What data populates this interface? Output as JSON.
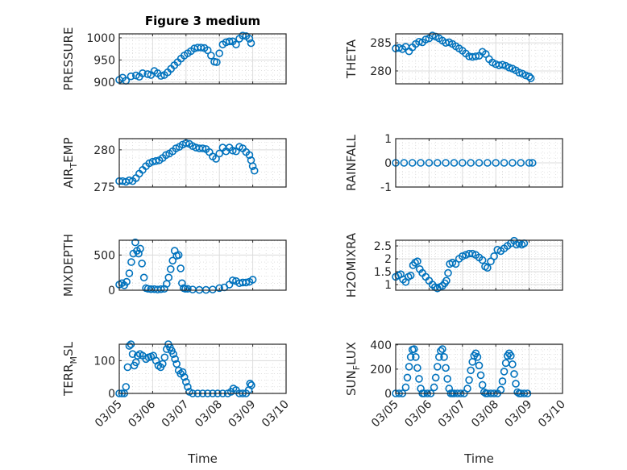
{
  "title": "Figure 3 medium",
  "colors": {
    "marker": "#0072BD",
    "axis": "#262626",
    "grid": "#dcdcdc"
  },
  "chart_data": [
    {
      "type": "scatter",
      "ylabel": "PRESSURE",
      "ylabel_sub": "",
      "ylim": [
        896,
        1009
      ],
      "yticks": [
        900,
        950,
        1000
      ],
      "ytick_labels": [
        "900",
        "950",
        "1000"
      ],
      "title": "Figure 3 medium",
      "x": [
        0,
        0.1,
        0.2,
        0.35,
        0.5,
        0.6,
        0.7,
        0.85,
        0.95,
        1.05,
        1.15,
        1.25,
        1.35,
        1.45,
        1.55,
        1.65,
        1.75,
        1.85,
        1.95,
        2.05,
        2.15,
        2.25,
        2.35,
        2.45,
        2.55,
        2.65,
        2.75,
        2.85,
        2.92,
        3.0,
        3.1,
        3.2,
        3.3,
        3.4,
        3.5,
        3.6,
        3.7,
        3.8,
        3.9,
        3.95
      ],
      "y": [
        905,
        910,
        903,
        913,
        915,
        912,
        920,
        918,
        916,
        925,
        920,
        914,
        916,
        922,
        930,
        938,
        945,
        953,
        960,
        965,
        970,
        976,
        978,
        978,
        977,
        972,
        960,
        946,
        945,
        965,
        985,
        990,
        992,
        992,
        985,
        998,
        1005,
        1004,
        998,
        988
      ]
    },
    {
      "type": "scatter",
      "ylabel": "THETA",
      "ylabel_sub": "",
      "ylim": [
        277.7,
        286.6
      ],
      "yticks": [
        280,
        285
      ],
      "ytick_labels": [
        "280",
        "285"
      ],
      "x": [
        0,
        0.1,
        0.2,
        0.3,
        0.4,
        0.5,
        0.6,
        0.7,
        0.8,
        0.9,
        1.0,
        1.1,
        1.2,
        1.3,
        1.4,
        1.5,
        1.6,
        1.7,
        1.8,
        1.9,
        2.0,
        2.1,
        2.2,
        2.3,
        2.4,
        2.5,
        2.6,
        2.7,
        2.8,
        2.9,
        3.0,
        3.1,
        3.2,
        3.3,
        3.4,
        3.5,
        3.6,
        3.7,
        3.8,
        3.9,
        4.0,
        4.05
      ],
      "y": [
        284,
        284.1,
        283.9,
        284.3,
        283.5,
        284.2,
        284.8,
        285.2,
        285.1,
        285.6,
        285.8,
        286.3,
        286.1,
        285.8,
        285.4,
        285.0,
        285.1,
        284.8,
        284.4,
        284.0,
        283.6,
        283.1,
        282.6,
        282.5,
        282.6,
        282.7,
        283.4,
        283.0,
        282.1,
        281.5,
        281.2,
        281.0,
        281.1,
        280.9,
        280.6,
        280.4,
        280.1,
        279.7,
        279.5,
        279.2,
        279.0,
        278.7
      ]
    },
    {
      "type": "scatter",
      "ylabel": "AIR",
      "ylabel_sub": "T",
      "ylabel_rest": "EMP",
      "ylim": [
        275,
        281.5
      ],
      "yticks": [
        275,
        280
      ],
      "ytick_labels": [
        "275",
        "280"
      ],
      "x": [
        0,
        0.1,
        0.2,
        0.3,
        0.4,
        0.5,
        0.6,
        0.7,
        0.8,
        0.9,
        1.0,
        1.1,
        1.2,
        1.3,
        1.4,
        1.5,
        1.6,
        1.7,
        1.8,
        1.9,
        2.0,
        2.1,
        2.2,
        2.3,
        2.4,
        2.5,
        2.6,
        2.7,
        2.8,
        2.9,
        3.0,
        3.1,
        3.2,
        3.3,
        3.4,
        3.5,
        3.6,
        3.7,
        3.8,
        3.9,
        3.95,
        4.0,
        4.05
      ],
      "y": [
        275.8,
        275.8,
        275.7,
        275.9,
        275.8,
        276.2,
        276.8,
        277.3,
        277.8,
        278.2,
        278.4,
        278.5,
        278.6,
        278.9,
        279.3,
        279.5,
        279.8,
        280.2,
        280.4,
        280.7,
        280.9,
        280.8,
        280.5,
        280.3,
        280.2,
        280.2,
        280.1,
        279.7,
        279.1,
        278.8,
        279.5,
        280.3,
        279.8,
        280.3,
        279.9,
        279.8,
        280.4,
        280.2,
        279.7,
        279.3,
        278.6,
        277.8,
        277.2
      ]
    },
    {
      "type": "scatter",
      "ylabel": "RAINFALL",
      "ylabel_sub": "",
      "ylim": [
        -1,
        1
      ],
      "yticks": [
        -1,
        0,
        1
      ],
      "ytick_labels": [
        "-1",
        "0",
        "1"
      ],
      "x": [
        0,
        0.25,
        0.5,
        0.75,
        1,
        1.25,
        1.5,
        1.75,
        2,
        2.25,
        2.5,
        2.75,
        3,
        3.25,
        3.5,
        3.75,
        4,
        4.1
      ],
      "y": [
        0,
        0,
        0,
        0,
        0,
        0,
        0,
        0,
        0,
        0,
        0,
        0,
        0,
        0,
        0,
        0,
        0,
        0
      ]
    },
    {
      "type": "scatter",
      "ylabel": "MIXDEPTH",
      "ylabel_sub": "",
      "ylim": [
        0,
        710
      ],
      "yticks": [
        0,
        500
      ],
      "ytick_labels": [
        "0",
        "500"
      ],
      "x": [
        0,
        0.08,
        0.15,
        0.22,
        0.3,
        0.36,
        0.42,
        0.48,
        0.53,
        0.58,
        0.63,
        0.68,
        0.74,
        0.8,
        0.86,
        0.95,
        1.05,
        1.15,
        1.25,
        1.35,
        1.42,
        1.48,
        1.54,
        1.6,
        1.66,
        1.72,
        1.78,
        1.84,
        1.88,
        1.93,
        1.98,
        2.05,
        2.2,
        2.4,
        2.6,
        2.8,
        3.0,
        3.15,
        3.3,
        3.4,
        3.5,
        3.6,
        3.7,
        3.8,
        3.9,
        4.0
      ],
      "y": [
        80,
        100,
        70,
        120,
        240,
        400,
        520,
        680,
        560,
        520,
        590,
        380,
        180,
        30,
        20,
        15,
        15,
        10,
        15,
        20,
        90,
        180,
        300,
        420,
        560,
        490,
        500,
        310,
        100,
        30,
        20,
        20,
        10,
        5,
        5,
        10,
        30,
        40,
        80,
        140,
        130,
        100,
        110,
        110,
        120,
        150
      ]
    },
    {
      "type": "scatter",
      "ylabel": "H2OMIXRA",
      "ylabel_sub": "",
      "ylim": [
        0.78,
        2.72
      ],
      "yticks": [
        1,
        1.5,
        2,
        2.5
      ],
      "ytick_labels": [
        "1",
        "1.5",
        "2",
        "2.5"
      ],
      "x": [
        0,
        0.08,
        0.15,
        0.22,
        0.3,
        0.38,
        0.45,
        0.52,
        0.58,
        0.65,
        0.72,
        0.8,
        0.9,
        1.0,
        1.1,
        1.18,
        1.25,
        1.32,
        1.4,
        1.47,
        1.52,
        1.57,
        1.62,
        1.7,
        1.8,
        1.9,
        2.0,
        2.1,
        2.2,
        2.3,
        2.4,
        2.5,
        2.6,
        2.68,
        2.75,
        2.85,
        2.95,
        3.05,
        3.15,
        3.25,
        3.35,
        3.45,
        3.55,
        3.62,
        3.7,
        3.78,
        3.85
      ],
      "y": [
        1.3,
        1.35,
        1.4,
        1.2,
        1.1,
        1.3,
        1.35,
        1.75,
        1.85,
        1.9,
        1.6,
        1.45,
        1.3,
        1.15,
        1.0,
        0.9,
        0.85,
        0.9,
        0.95,
        1.05,
        1.15,
        1.45,
        1.8,
        1.85,
        1.8,
        2.0,
        2.1,
        2.15,
        2.2,
        2.2,
        2.15,
        2.05,
        1.95,
        1.7,
        1.65,
        1.9,
        2.1,
        2.35,
        2.3,
        2.4,
        2.5,
        2.6,
        2.7,
        2.55,
        2.6,
        2.55,
        2.6
      ]
    },
    {
      "type": "scatter",
      "ylabel": "TERR",
      "ylabel_sub": "M",
      "ylabel_rest": "SL",
      "ylim": [
        0,
        150
      ],
      "yticks": [
        0,
        100
      ],
      "ytick_labels": [
        "0",
        "100"
      ],
      "x": [
        0,
        0.08,
        0.15,
        0.2,
        0.25,
        0.3,
        0.35,
        0.4,
        0.45,
        0.5,
        0.55,
        0.62,
        0.7,
        0.8,
        0.88,
        0.95,
        1.02,
        1.1,
        1.17,
        1.24,
        1.3,
        1.36,
        1.42,
        1.47,
        1.52,
        1.57,
        1.62,
        1.67,
        1.72,
        1.78,
        1.84,
        1.9,
        1.95,
        2.0,
        2.05,
        2.1,
        2.2,
        2.35,
        2.5,
        2.65,
        2.8,
        2.95,
        3.1,
        3.25,
        3.35,
        3.42,
        3.5,
        3.6,
        3.7,
        3.8,
        3.88,
        3.92,
        3.96
      ],
      "y": [
        0,
        0,
        0,
        20,
        80,
        145,
        150,
        120,
        85,
        95,
        115,
        120,
        115,
        105,
        110,
        112,
        115,
        100,
        85,
        80,
        90,
        110,
        135,
        150,
        140,
        130,
        120,
        105,
        90,
        70,
        60,
        65,
        50,
        35,
        20,
        5,
        0,
        0,
        0,
        0,
        0,
        0,
        0,
        0,
        5,
        15,
        10,
        0,
        0,
        0,
        10,
        30,
        25
      ]
    },
    {
      "type": "scatter",
      "ylabel": "SUN",
      "ylabel_sub": "F",
      "ylabel_rest": "LUX",
      "ylim": [
        0,
        405
      ],
      "yticks": [
        0,
        200,
        400
      ],
      "ytick_labels": [
        "0",
        "200",
        "400"
      ],
      "x": [
        0,
        0.1,
        0.2,
        0.3,
        0.35,
        0.4,
        0.45,
        0.5,
        0.55,
        0.6,
        0.65,
        0.7,
        0.75,
        0.8,
        0.85,
        0.95,
        1.05,
        1.15,
        1.2,
        1.25,
        1.3,
        1.35,
        1.4,
        1.45,
        1.5,
        1.55,
        1.6,
        1.65,
        1.7,
        1.75,
        1.85,
        1.95,
        2.05,
        2.15,
        2.2,
        2.25,
        2.3,
        2.35,
        2.4,
        2.45,
        2.5,
        2.55,
        2.6,
        2.65,
        2.7,
        2.75,
        2.85,
        2.95,
        3.05,
        3.15,
        3.2,
        3.25,
        3.3,
        3.35,
        3.4,
        3.45,
        3.5,
        3.55,
        3.6,
        3.65,
        3.7,
        3.75,
        3.85,
        3.95
      ],
      "y": [
        0,
        0,
        0,
        50,
        130,
        220,
        300,
        360,
        365,
        300,
        210,
        120,
        40,
        0,
        0,
        0,
        0,
        50,
        130,
        220,
        300,
        350,
        365,
        300,
        210,
        120,
        40,
        0,
        0,
        0,
        0,
        0,
        0,
        40,
        110,
        190,
        260,
        310,
        330,
        300,
        230,
        150,
        70,
        10,
        0,
        0,
        0,
        0,
        0,
        30,
        100,
        180,
        250,
        310,
        330,
        310,
        240,
        160,
        80,
        10,
        0,
        0,
        0,
        0
      ]
    }
  ],
  "xaxis": {
    "xlim_days": [
      0,
      5
    ],
    "tick_labels": [
      "03/05",
      "03/06",
      "03/07",
      "03/08",
      "03/09",
      "03/10"
    ],
    "xlabel": "Time"
  }
}
